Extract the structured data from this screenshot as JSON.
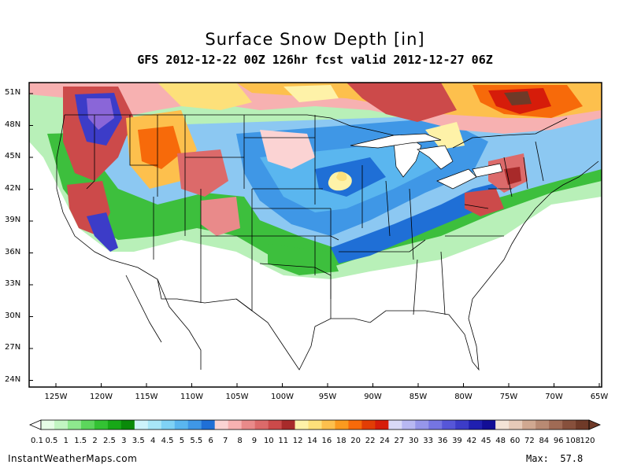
{
  "title": "Surface Snow Depth [in]",
  "subtitle": "GFS 2012-12-22 00Z 126hr fcst valid 2012-12-27 06Z",
  "latitude_labels": [
    "51N",
    "48N",
    "45N",
    "42N",
    "39N",
    "36N",
    "33N",
    "30N",
    "27N",
    "24N"
  ],
  "longitude_labels": [
    "125W",
    "120W",
    "115W",
    "110W",
    "105W",
    "100W",
    "95W",
    "90W",
    "85W",
    "80W",
    "75W",
    "70W",
    "65W"
  ],
  "colorbar": {
    "labels": [
      "0.1",
      "0.5",
      "1",
      "1.5",
      "2",
      "2.5",
      "3",
      "3.5",
      "4",
      "4.5",
      "5",
      "5.5",
      "6",
      "7",
      "8",
      "9",
      "10",
      "11",
      "12",
      "14",
      "16",
      "18",
      "20",
      "22",
      "24",
      "27",
      "30",
      "33",
      "36",
      "39",
      "42",
      "45",
      "48",
      "60",
      "72",
      "84",
      "96",
      "108",
      "120"
    ],
    "colors": [
      "#e6fde6",
      "#c2f5c2",
      "#8ee88e",
      "#5cd65c",
      "#33c233",
      "#17a817",
      "#0a8a0a",
      "#cdf3fb",
      "#a8e6f7",
      "#7fd2f5",
      "#5ab6ef",
      "#3f97e6",
      "#1f6fd6",
      "#fbd3d3",
      "#f7b1b1",
      "#e98a8a",
      "#dc6a6a",
      "#cc4a4a",
      "#a82a2a",
      "#fef2a8",
      "#fde07a",
      "#fdc04d",
      "#fb9a1f",
      "#f76a0a",
      "#e23d05",
      "#d61c0a",
      "#d9d9f7",
      "#b8b8f2",
      "#9696ea",
      "#7575e2",
      "#5656d8",
      "#3c3cc8",
      "#2020b0",
      "#120e96",
      "#f3e3d6",
      "#e6cab8",
      "#d0a891",
      "#b88a73",
      "#a06b55",
      "#87503c",
      "#6f3a28"
    ]
  },
  "footer": {
    "site": "InstantWeatherMaps.com",
    "max_label": "Max:",
    "max_value": "57.8"
  }
}
